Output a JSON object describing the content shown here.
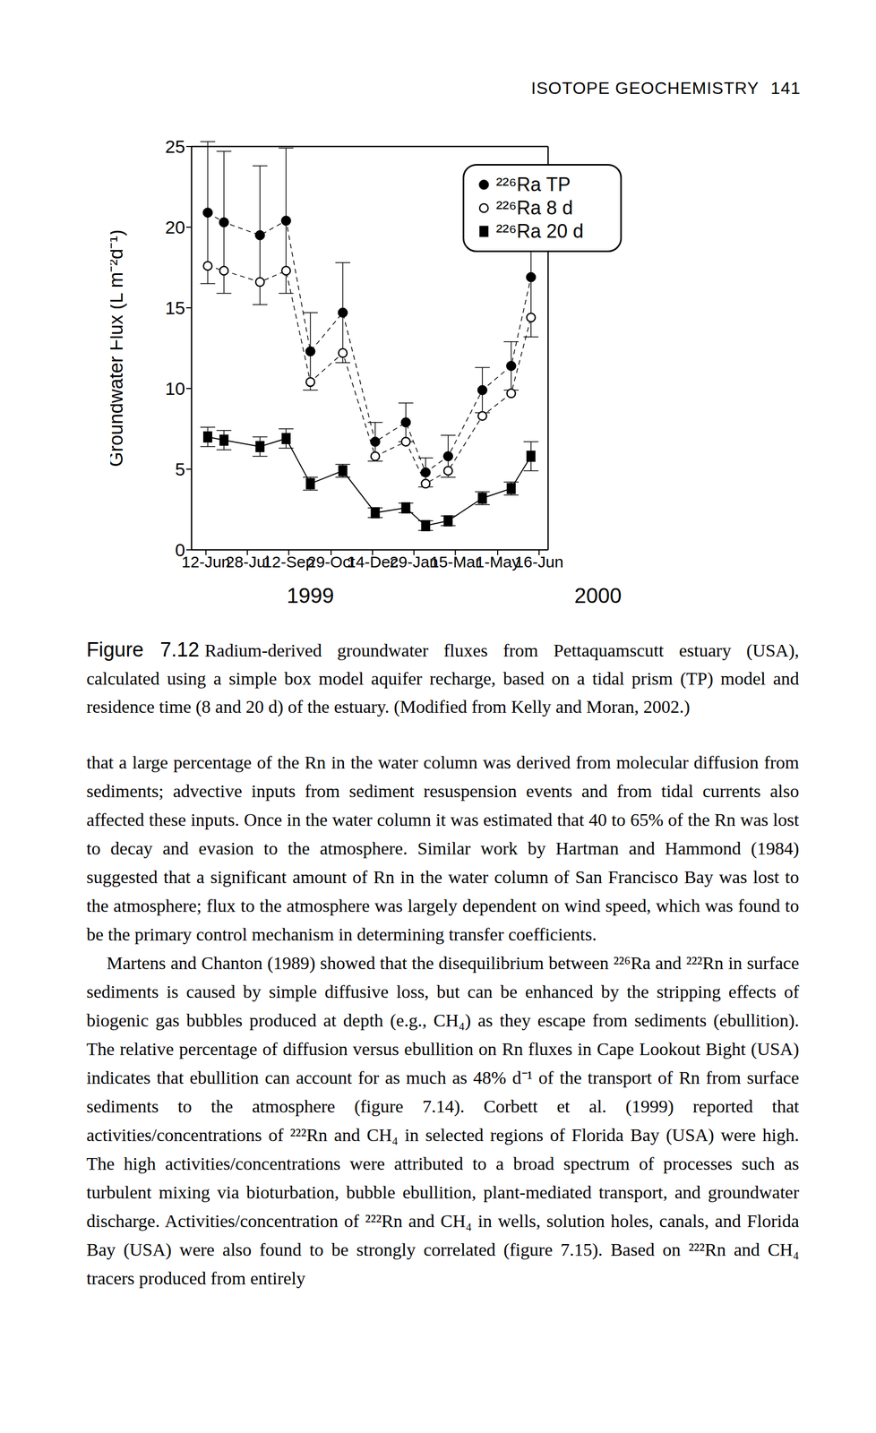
{
  "header": {
    "title": "ISOTOPE GEOCHEMISTRY",
    "page": "141"
  },
  "chart_data": {
    "type": "line",
    "ylabel": "Groundwater Flux (L m⁻²d⁻¹)",
    "x": [
      2,
      20,
      60,
      89,
      116,
      152,
      188,
      222,
      244,
      269,
      307,
      339,
      361
    ],
    "xlim": [
      -16,
      380
    ],
    "xticks": [
      {
        "value": 0,
        "label": "12-Jun"
      },
      {
        "value": 46,
        "label": "28-Jul"
      },
      {
        "value": 92,
        "label": "12-Sep"
      },
      {
        "value": 139,
        "label": "29-Oct"
      },
      {
        "value": 185,
        "label": "14-Dec"
      },
      {
        "value": 231,
        "label": "29-Jan"
      },
      {
        "value": 277,
        "label": "15-Mar"
      },
      {
        "value": 324,
        "label": "1-May"
      },
      {
        "value": 370,
        "label": "16-Jun"
      }
    ],
    "annotations": [
      "1999",
      "2000"
    ],
    "ylim": [
      0,
      25
    ],
    "yticks": [
      0,
      5,
      10,
      15,
      20,
      25
    ],
    "grid": false,
    "legend": "top right",
    "series": [
      {
        "name": "²²⁶Ra TP",
        "color": "#000000",
        "marker": "circle",
        "line_style": "dashed",
        "values": [
          20.9,
          20.3,
          19.5,
          20.4,
          12.3,
          14.7,
          6.7,
          7.9,
          4.8,
          5.8,
          9.9,
          11.4,
          16.9
        ],
        "errors": [
          4.4,
          4.4,
          4.3,
          4.5,
          2.4,
          3.1,
          1.2,
          1.2,
          0.9,
          1.3,
          1.4,
          1.5,
          3.7
        ]
      },
      {
        "name": "²²⁶Ra 8 d",
        "color": "#000000",
        "marker": "open_circle",
        "line_style": "dashed",
        "values": [
          17.6,
          17.3,
          16.6,
          17.3,
          10.4,
          12.2,
          5.8,
          6.7,
          4.1,
          4.9,
          8.3,
          9.7,
          14.4
        ]
      },
      {
        "name": "²²⁶Ra 20 d",
        "color": "#000000",
        "marker": "square",
        "line_style": "solid",
        "values": [
          7.0,
          6.8,
          6.4,
          6.9,
          4.1,
          4.9,
          2.3,
          2.6,
          1.5,
          1.8,
          3.2,
          3.8,
          5.8
        ],
        "errors": [
          0.6,
          0.6,
          0.6,
          0.6,
          0.4,
          0.4,
          0.3,
          0.3,
          0.3,
          0.3,
          0.4,
          0.4,
          0.9
        ]
      }
    ]
  },
  "caption": {
    "label": "Figure 7.12",
    "text": "Radium-derived groundwater fluxes from Pettaquamscutt estuary (USA), calculated using a simple box model aquifer recharge, based on a tidal prism (TP) model and residence time (8 and 20 d) of the estuary. (Modified from Kelly and Moran, 2002.)"
  },
  "body": [
    "that a large percentage of the Rn in the water column was derived from molecular diffusion from sediments; advective inputs from sediment resuspension events and from tidal currents also affected these inputs. Once in the water column it was estimated that 40 to 65% of the Rn was lost to decay and evasion to the atmosphere. Similar work by Hartman and Hammond (1984) suggested that a significant amount of Rn in the water column of San Francisco Bay was lost to the atmosphere; flux to the atmosphere was largely dependent on wind speed, which was found to be the primary control mechanism in determining transfer coefficients.",
    "Martens and Chanton (1989) showed that the disequilibrium between ²²⁶Ra and ²²²Rn in surface sediments is caused by simple diffusive loss, but can be enhanced by the stripping effects of biogenic gas bubbles produced at depth (e.g., CH₄) as they escape from sediments (ebullition). The relative percentage of diffusion versus ebullition on Rn fluxes in Cape Lookout Bight (USA) indicates that ebullition can account for as much as 48% d⁻¹ of the transport of Rn from surface sediments to the atmosphere (figure 7.14). Corbett et al. (1999) reported that activities/concentrations of ²²²Rn and CH₄ in selected regions of Florida Bay (USA) were high. The high activities/concentrations were attributed to a broad spectrum of processes such as turbulent mixing via bioturbation, bubble ebullition, plant-mediated transport, and groundwater discharge. Activities/concentration of ²²²Rn and CH₄ in wells, solution holes, canals, and Florida Bay (USA) were also found to be strongly correlated (figure 7.15). Based on ²²²Rn and CH₄ tracers produced from entirely"
  ]
}
